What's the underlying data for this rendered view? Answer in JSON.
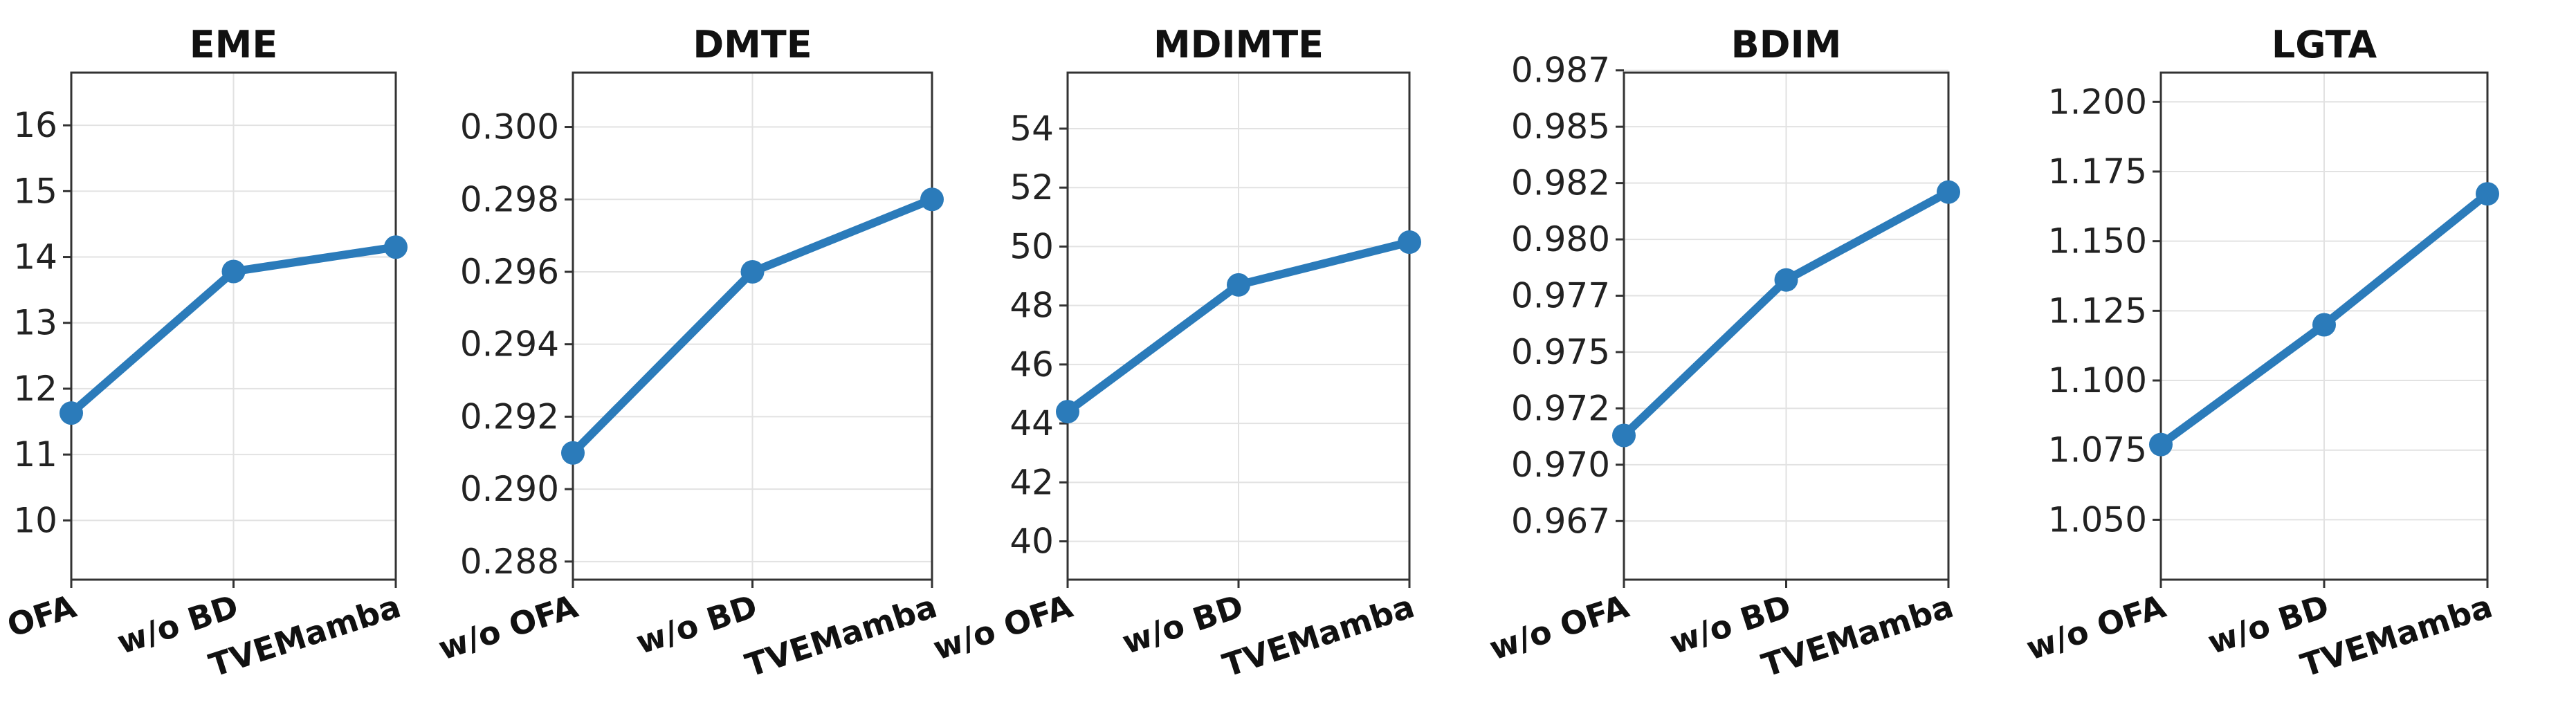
{
  "figure": {
    "colors": {
      "line": "#2b7bba",
      "grid": "#e2e2e2",
      "frame": "#333333"
    }
  },
  "chart_data": [
    {
      "type": "line",
      "title": "EME",
      "categories": [
        "w/o OFA",
        "w/o BD",
        "TVEMamba"
      ],
      "series": [
        {
          "values": [
            11.63,
            13.78,
            14.15
          ]
        }
      ],
      "ylim": [
        9.1,
        16.8
      ],
      "yticks": [
        10,
        11,
        12,
        13,
        14,
        15,
        16
      ],
      "ytick_labels": [
        "10",
        "11",
        "12",
        "13",
        "14",
        "15",
        "16"
      ],
      "grid": true
    },
    {
      "type": "line",
      "title": "DMTE",
      "categories": [
        "w/o OFA",
        "w/o BD",
        "TVEMamba"
      ],
      "series": [
        {
          "values": [
            0.291,
            0.296,
            0.298
          ]
        }
      ],
      "ylim": [
        0.2875,
        0.3015
      ],
      "yticks": [
        0.288,
        0.29,
        0.292,
        0.294,
        0.296,
        0.298,
        0.3
      ],
      "ytick_labels": [
        "0.288",
        "0.290",
        "0.292",
        "0.294",
        "0.296",
        "0.298",
        "0.300"
      ],
      "grid": true
    },
    {
      "type": "line",
      "title": "MDIMTE",
      "categories": [
        "w/o OFA",
        "w/o BD",
        "TVEMamba"
      ],
      "series": [
        {
          "values": [
            44.4,
            48.7,
            50.15
          ]
        }
      ],
      "ylim": [
        38.7,
        55.9
      ],
      "yticks": [
        40,
        42,
        44,
        46,
        48,
        50,
        52,
        54
      ],
      "ytick_labels": [
        "40",
        "42",
        "44",
        "46",
        "48",
        "50",
        "52",
        "54"
      ],
      "grid": true
    },
    {
      "type": "line",
      "title": "BDIM",
      "categories": [
        "w/o OFA",
        "w/o BD",
        "TVEMamba"
      ],
      "series": [
        {
          "values": [
            0.9709,
            0.9778,
            0.9817
          ]
        }
      ],
      "ylim": [
        0.9645,
        0.987
      ],
      "yticks": [
        0.9671,
        0.9696,
        0.9721,
        0.9746,
        0.9771,
        0.9796,
        0.9821,
        0.9846,
        0.9871
      ],
      "ytick_labels": [
        "0.967",
        "0.970",
        "0.972",
        "0.975",
        "0.977",
        "0.980",
        "0.982",
        "0.985",
        "0.987"
      ],
      "grid": true
    },
    {
      "type": "line",
      "title": "LGTA",
      "categories": [
        "w/o OFA",
        "w/o BD",
        "TVEMamba"
      ],
      "series": [
        {
          "values": [
            1.077,
            1.12,
            1.167
          ]
        }
      ],
      "ylim": [
        1.0285,
        1.2105
      ],
      "yticks": [
        1.05,
        1.075,
        1.1,
        1.125,
        1.15,
        1.175,
        1.2
      ],
      "ytick_labels": [
        "1.050",
        "1.075",
        "1.100",
        "1.125",
        "1.150",
        "1.175",
        "1.200"
      ],
      "grid": true
    }
  ]
}
